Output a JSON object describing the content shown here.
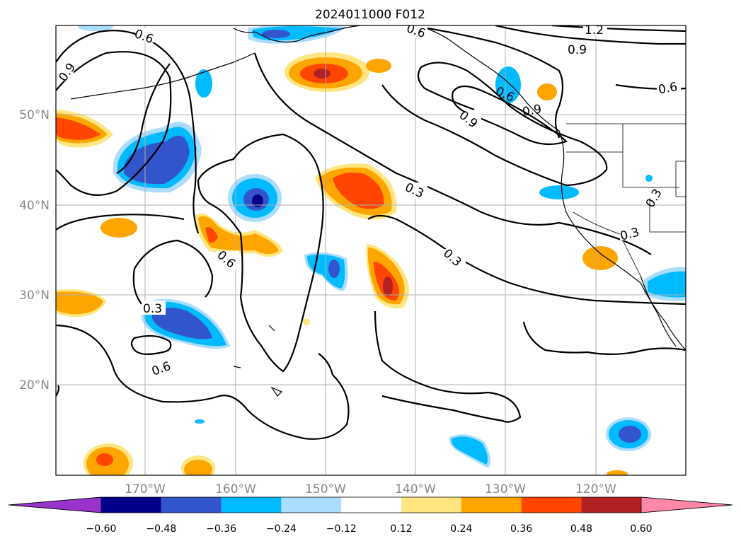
{
  "title": "2024011000 F012",
  "lat_labels": [
    "50°N",
    "40°N",
    "30°N",
    "20°N"
  ],
  "lon_labels": [
    "170°W",
    "160°W",
    "150°W",
    "140°W",
    "130°W",
    "120°W"
  ],
  "contour_labels": [
    "0.6",
    "0.9",
    "1.2",
    "0.9",
    "0.6",
    "0.6",
    "0.9",
    "0.6",
    "0.3",
    "0.3",
    "0.3",
    "0.6",
    "0.3",
    "0.6",
    "0.3",
    "0.9"
  ],
  "colorbar": {
    "ticks": [
      "−0.60",
      "−0.48",
      "−0.36",
      "−0.24",
      "−0.12",
      "0.12",
      "0.24",
      "0.36",
      "0.48",
      "0.60"
    ],
    "colors": [
      "#9933cc",
      "#000088",
      "#3355cc",
      "#00bbff",
      "#aaddff",
      "#ffffff",
      "#ffe680",
      "#ffa500",
      "#ff4500",
      "#b22222",
      "#ff88aa"
    ]
  },
  "palette": {
    "neg_strong": "#000088",
    "neg_mid": "#3355cc",
    "neg_light": "#00bbff",
    "neg_faint": "#aaddff",
    "pos_faint": "#ffe680",
    "pos_light": "#ffa500",
    "pos_mid": "#ff4500",
    "pos_strong": "#b22222"
  }
}
